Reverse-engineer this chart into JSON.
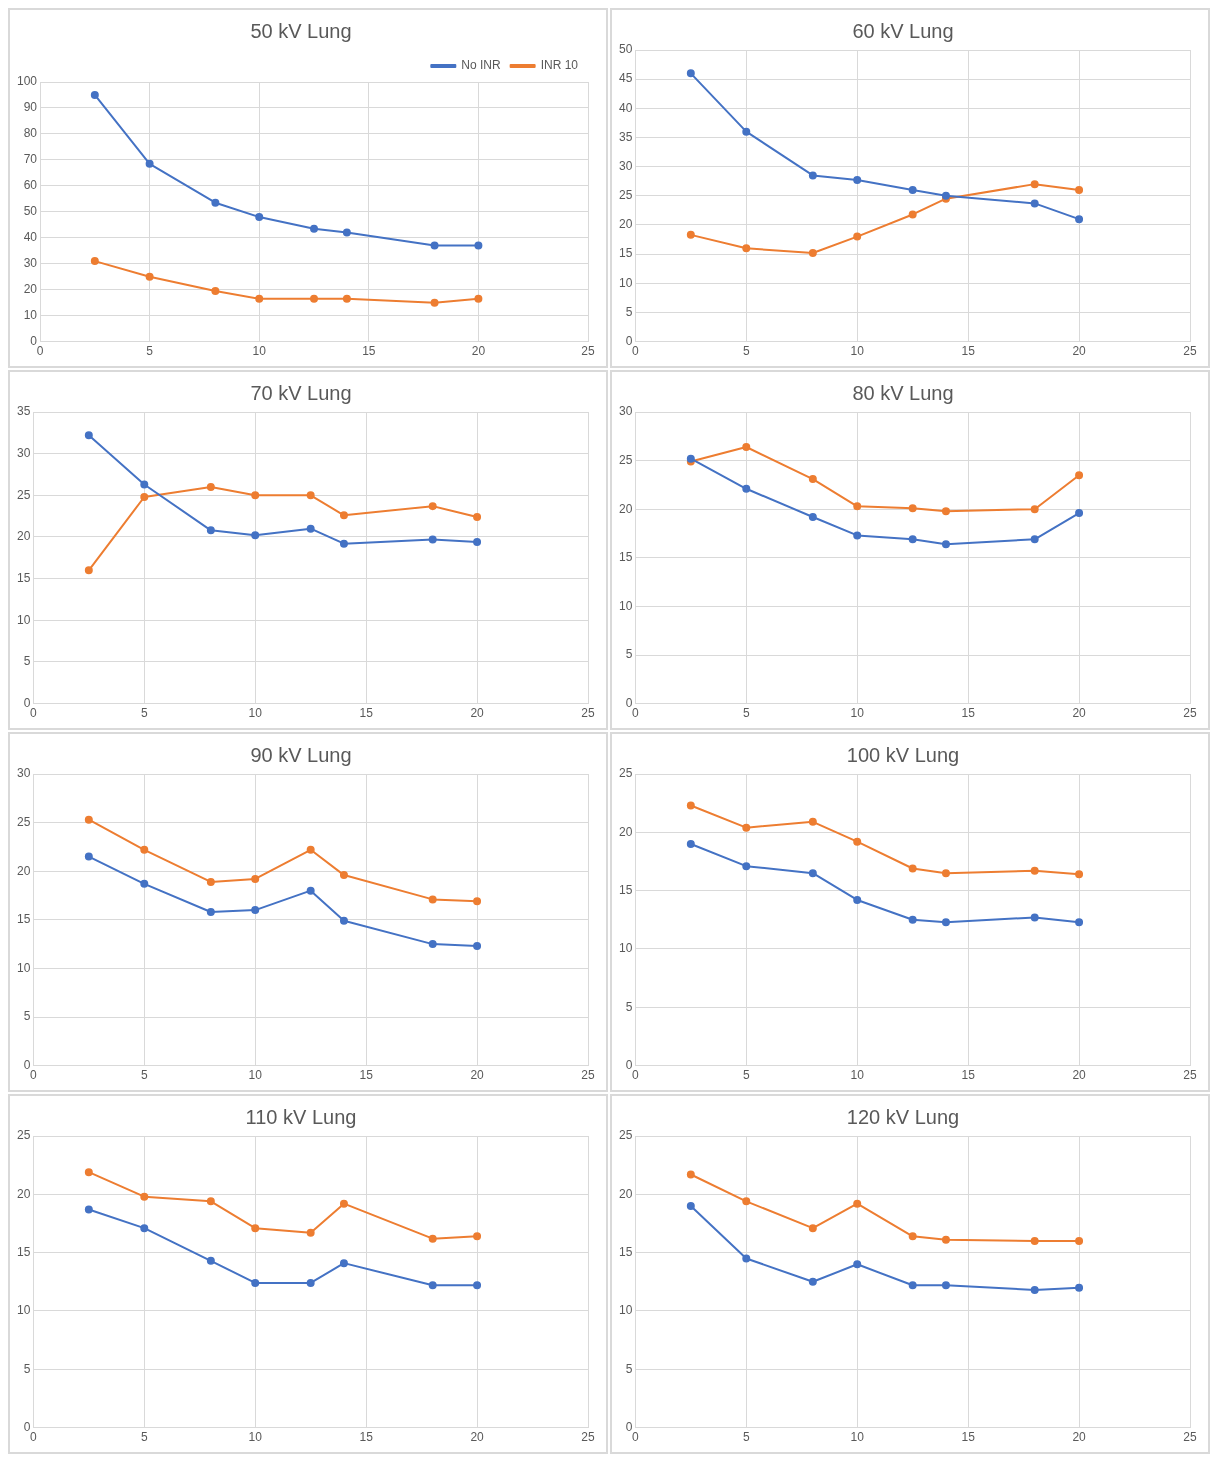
{
  "chart_data": [
    {
      "type": "line",
      "title": "50 kV Lung",
      "x": [
        2.5,
        5,
        8,
        10,
        12.5,
        14,
        18,
        20
      ],
      "xlim": [
        0,
        25
      ],
      "xticks": [
        0,
        5,
        10,
        15,
        20,
        25
      ],
      "ylim": [
        0,
        100
      ],
      "yticks": [
        0,
        10,
        20,
        30,
        40,
        50,
        60,
        70,
        80,
        90,
        100
      ],
      "grid": true,
      "marker": "circle",
      "legend": "top right",
      "series": [
        {
          "name": "No INR",
          "color": "#4472c4",
          "values": [
            95,
            68.5,
            53.5,
            48,
            43.5,
            42,
            37,
            37
          ]
        },
        {
          "name": "INR 10",
          "color": "#ed7d31",
          "values": [
            31,
            25,
            19.5,
            16.5,
            16.5,
            16.5,
            15,
            16.5
          ]
        }
      ]
    },
    {
      "type": "line",
      "title": "60 kV Lung",
      "x": [
        2.5,
        5,
        8,
        10,
        12.5,
        14,
        18,
        20
      ],
      "xlim": [
        0,
        25
      ],
      "xticks": [
        0,
        5,
        10,
        15,
        20,
        25
      ],
      "ylim": [
        0,
        50
      ],
      "yticks": [
        0,
        5,
        10,
        15,
        20,
        25,
        30,
        35,
        40,
        45,
        50
      ],
      "grid": true,
      "marker": "circle",
      "series": [
        {
          "color": "#4472c4",
          "values": [
            46,
            36,
            28.5,
            27.7,
            26,
            25,
            23.7,
            21
          ]
        },
        {
          "color": "#ed7d31",
          "values": [
            18.3,
            16,
            15.2,
            18,
            21.8,
            24.5,
            27,
            26
          ]
        }
      ]
    },
    {
      "type": "line",
      "title": "70 kV Lung",
      "x": [
        2.5,
        5,
        8,
        10,
        12.5,
        14,
        18,
        20
      ],
      "xlim": [
        0,
        25
      ],
      "xticks": [
        0,
        5,
        10,
        15,
        20,
        25
      ],
      "ylim": [
        0,
        35
      ],
      "yticks": [
        0,
        5,
        10,
        15,
        20,
        25,
        30,
        35
      ],
      "grid": true,
      "marker": "circle",
      "series": [
        {
          "color": "#4472c4",
          "values": [
            32.2,
            26.3,
            20.8,
            20.2,
            21,
            19.2,
            19.7,
            19.4
          ]
        },
        {
          "color": "#ed7d31",
          "values": [
            16,
            24.8,
            26,
            25,
            25,
            22.6,
            23.7,
            22.4
          ]
        }
      ]
    },
    {
      "type": "line",
      "title": "80 kV Lung",
      "x": [
        2.5,
        5,
        8,
        10,
        12.5,
        14,
        18,
        20
      ],
      "xlim": [
        0,
        25
      ],
      "xticks": [
        0,
        5,
        10,
        15,
        20,
        25
      ],
      "ylim": [
        0,
        30
      ],
      "yticks": [
        0,
        5,
        10,
        15,
        20,
        25,
        30
      ],
      "grid": true,
      "marker": "circle",
      "series": [
        {
          "color": "#4472c4",
          "values": [
            25.2,
            22.1,
            19.2,
            17.3,
            16.9,
            16.4,
            16.9,
            19.6
          ]
        },
        {
          "color": "#ed7d31",
          "values": [
            24.9,
            26.4,
            23.1,
            20.3,
            20.1,
            19.8,
            20,
            23.5
          ]
        }
      ]
    },
    {
      "type": "line",
      "title": "90 kV Lung",
      "x": [
        2.5,
        5,
        8,
        10,
        12.5,
        14,
        18,
        20
      ],
      "xlim": [
        0,
        25
      ],
      "xticks": [
        0,
        5,
        10,
        15,
        20,
        25
      ],
      "ylim": [
        0,
        30
      ],
      "yticks": [
        0,
        5,
        10,
        15,
        20,
        25,
        30
      ],
      "grid": true,
      "marker": "circle",
      "series": [
        {
          "color": "#4472c4",
          "values": [
            21.5,
            18.7,
            15.8,
            16,
            18,
            14.9,
            12.5,
            12.3
          ]
        },
        {
          "color": "#ed7d31",
          "values": [
            25.3,
            22.2,
            18.9,
            19.2,
            22.2,
            19.6,
            17.1,
            16.9
          ]
        }
      ]
    },
    {
      "type": "line",
      "title": "100 kV Lung",
      "x": [
        2.5,
        5,
        8,
        10,
        12.5,
        14,
        18,
        20
      ],
      "xlim": [
        0,
        25
      ],
      "xticks": [
        0,
        5,
        10,
        15,
        20,
        25
      ],
      "ylim": [
        0,
        25
      ],
      "yticks": [
        0,
        5,
        10,
        15,
        20,
        25
      ],
      "grid": true,
      "marker": "circle",
      "series": [
        {
          "color": "#4472c4",
          "values": [
            19,
            17.1,
            16.5,
            14.2,
            12.5,
            12.3,
            12.7,
            12.3
          ]
        },
        {
          "color": "#ed7d31",
          "values": [
            22.3,
            20.4,
            20.9,
            19.2,
            16.9,
            16.5,
            16.7,
            16.4
          ]
        }
      ]
    },
    {
      "type": "line",
      "title": "110 kV Lung",
      "x": [
        2.5,
        5,
        8,
        10,
        12.5,
        14,
        18,
        20
      ],
      "xlim": [
        0,
        25
      ],
      "xticks": [
        0,
        5,
        10,
        15,
        20,
        25
      ],
      "ylim": [
        0,
        25
      ],
      "yticks": [
        0,
        5,
        10,
        15,
        20,
        25
      ],
      "grid": true,
      "marker": "circle",
      "series": [
        {
          "color": "#4472c4",
          "values": [
            18.7,
            17.1,
            14.3,
            12.4,
            12.4,
            14.1,
            12.2,
            12.2
          ]
        },
        {
          "color": "#ed7d31",
          "values": [
            21.9,
            19.8,
            19.4,
            17.1,
            16.7,
            19.2,
            16.2,
            16.4
          ]
        }
      ]
    },
    {
      "type": "line",
      "title": "120 kV Lung",
      "x": [
        2.5,
        5,
        8,
        10,
        12.5,
        14,
        18,
        20
      ],
      "xlim": [
        0,
        25
      ],
      "xticks": [
        0,
        5,
        10,
        15,
        20,
        25
      ],
      "ylim": [
        0,
        25
      ],
      "yticks": [
        0,
        5,
        10,
        15,
        20,
        25
      ],
      "grid": true,
      "marker": "circle",
      "series": [
        {
          "color": "#4472c4",
          "values": [
            19,
            14.5,
            12.5,
            14,
            12.2,
            12.2,
            11.8,
            12
          ]
        },
        {
          "color": "#ed7d31",
          "values": [
            21.7,
            19.4,
            17.1,
            19.2,
            16.4,
            16.1,
            16,
            16
          ]
        }
      ]
    }
  ]
}
